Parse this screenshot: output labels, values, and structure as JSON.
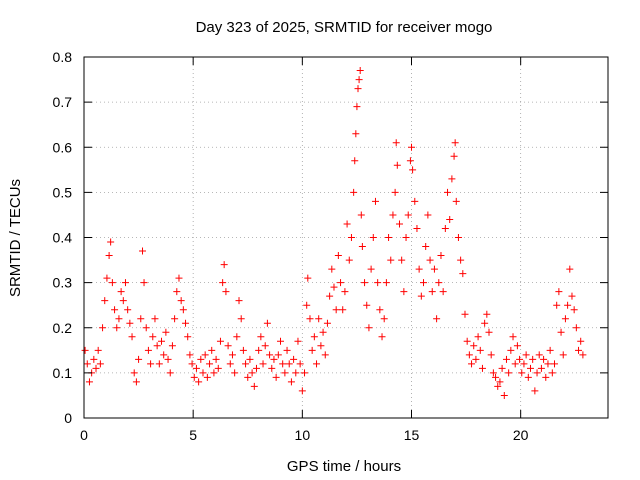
{
  "chart_data": {
    "type": "scatter",
    "title": "Day 323 of 2025, SRMTID for receiver mogo",
    "xlabel": "GPS time / hours",
    "ylabel": "SRMTID / TECUs",
    "xlim": [
      0,
      24
    ],
    "ylim": [
      0,
      0.8
    ],
    "x_ticks": [
      0,
      5,
      10,
      15,
      20
    ],
    "x_tick_labels": [
      "0",
      "5",
      "10",
      "15",
      "20"
    ],
    "y_ticks": [
      0,
      0.1,
      0.2,
      0.3,
      0.4,
      0.5,
      0.6,
      0.7,
      0.8
    ],
    "y_tick_labels": [
      "0",
      "0.1",
      "0.2",
      "0.3",
      "0.4",
      "0.5",
      "0.6",
      "0.7",
      "0.8"
    ],
    "grid": true,
    "marker": "+",
    "color": "#ff0000",
    "series": [
      {
        "name": "SRMTID",
        "points": [
          [
            0.05,
            0.15
          ],
          [
            0.15,
            0.12
          ],
          [
            0.25,
            0.08
          ],
          [
            0.35,
            0.1
          ],
          [
            0.45,
            0.13
          ],
          [
            0.55,
            0.11
          ],
          [
            0.65,
            0.15
          ],
          [
            0.75,
            0.12
          ],
          [
            0.85,
            0.2
          ],
          [
            0.95,
            0.26
          ],
          [
            1.05,
            0.31
          ],
          [
            1.15,
            0.36
          ],
          [
            1.22,
            0.39
          ],
          [
            1.3,
            0.3
          ],
          [
            1.4,
            0.24
          ],
          [
            1.5,
            0.2
          ],
          [
            1.6,
            0.22
          ],
          [
            1.7,
            0.28
          ],
          [
            1.8,
            0.26
          ],
          [
            1.9,
            0.3
          ],
          [
            2.0,
            0.24
          ],
          [
            2.1,
            0.21
          ],
          [
            2.2,
            0.18
          ],
          [
            2.3,
            0.1
          ],
          [
            2.4,
            0.08
          ],
          [
            2.5,
            0.13
          ],
          [
            2.6,
            0.22
          ],
          [
            2.68,
            0.37
          ],
          [
            2.75,
            0.3
          ],
          [
            2.85,
            0.2
          ],
          [
            2.95,
            0.15
          ],
          [
            3.05,
            0.12
          ],
          [
            3.15,
            0.18
          ],
          [
            3.25,
            0.22
          ],
          [
            3.35,
            0.16
          ],
          [
            3.45,
            0.12
          ],
          [
            3.55,
            0.17
          ],
          [
            3.65,
            0.14
          ],
          [
            3.75,
            0.19
          ],
          [
            3.85,
            0.13
          ],
          [
            3.95,
            0.1
          ],
          [
            4.05,
            0.16
          ],
          [
            4.15,
            0.22
          ],
          [
            4.25,
            0.28
          ],
          [
            4.35,
            0.31
          ],
          [
            4.45,
            0.26
          ],
          [
            4.55,
            0.24
          ],
          [
            4.65,
            0.21
          ],
          [
            4.75,
            0.18
          ],
          [
            4.85,
            0.14
          ],
          [
            4.95,
            0.12
          ],
          [
            5.05,
            0.09
          ],
          [
            5.15,
            0.11
          ],
          [
            5.25,
            0.08
          ],
          [
            5.35,
            0.13
          ],
          [
            5.45,
            0.1
          ],
          [
            5.55,
            0.14
          ],
          [
            5.65,
            0.09
          ],
          [
            5.75,
            0.12
          ],
          [
            5.85,
            0.15
          ],
          [
            5.95,
            0.1
          ],
          [
            6.05,
            0.13
          ],
          [
            6.15,
            0.11
          ],
          [
            6.25,
            0.17
          ],
          [
            6.35,
            0.3
          ],
          [
            6.42,
            0.34
          ],
          [
            6.5,
            0.28
          ],
          [
            6.6,
            0.16
          ],
          [
            6.7,
            0.12
          ],
          [
            6.8,
            0.14
          ],
          [
            6.9,
            0.1
          ],
          [
            7.0,
            0.18
          ],
          [
            7.1,
            0.26
          ],
          [
            7.2,
            0.22
          ],
          [
            7.3,
            0.15
          ],
          [
            7.4,
            0.12
          ],
          [
            7.5,
            0.09
          ],
          [
            7.6,
            0.13
          ],
          [
            7.7,
            0.1
          ],
          [
            7.8,
            0.07
          ],
          [
            7.9,
            0.11
          ],
          [
            8.0,
            0.15
          ],
          [
            8.1,
            0.18
          ],
          [
            8.2,
            0.12
          ],
          [
            8.3,
            0.16
          ],
          [
            8.4,
            0.21
          ],
          [
            8.5,
            0.14
          ],
          [
            8.6,
            0.11
          ],
          [
            8.7,
            0.13
          ],
          [
            8.8,
            0.09
          ],
          [
            8.9,
            0.14
          ],
          [
            9.0,
            0.17
          ],
          [
            9.1,
            0.12
          ],
          [
            9.2,
            0.1
          ],
          [
            9.3,
            0.15
          ],
          [
            9.4,
            0.12
          ],
          [
            9.5,
            0.08
          ],
          [
            9.6,
            0.13
          ],
          [
            9.7,
            0.1
          ],
          [
            9.8,
            0.17
          ],
          [
            9.9,
            0.12
          ],
          [
            10.0,
            0.06
          ],
          [
            10.1,
            0.1
          ],
          [
            10.2,
            0.25
          ],
          [
            10.25,
            0.31
          ],
          [
            10.35,
            0.22
          ],
          [
            10.45,
            0.15
          ],
          [
            10.55,
            0.18
          ],
          [
            10.65,
            0.12
          ],
          [
            10.75,
            0.22
          ],
          [
            10.85,
            0.16
          ],
          [
            10.95,
            0.19
          ],
          [
            11.05,
            0.14
          ],
          [
            11.15,
            0.21
          ],
          [
            11.25,
            0.27
          ],
          [
            11.35,
            0.33
          ],
          [
            11.45,
            0.29
          ],
          [
            11.55,
            0.24
          ],
          [
            11.65,
            0.36
          ],
          [
            11.75,
            0.3
          ],
          [
            11.85,
            0.24
          ],
          [
            11.95,
            0.28
          ],
          [
            12.05,
            0.43
          ],
          [
            12.15,
            0.35
          ],
          [
            12.25,
            0.4
          ],
          [
            12.35,
            0.5
          ],
          [
            12.4,
            0.57
          ],
          [
            12.45,
            0.63
          ],
          [
            12.5,
            0.69
          ],
          [
            12.55,
            0.73
          ],
          [
            12.6,
            0.75
          ],
          [
            12.65,
            0.77
          ],
          [
            12.7,
            0.45
          ],
          [
            12.75,
            0.38
          ],
          [
            12.85,
            0.3
          ],
          [
            12.95,
            0.25
          ],
          [
            13.05,
            0.2
          ],
          [
            13.15,
            0.33
          ],
          [
            13.25,
            0.4
          ],
          [
            13.35,
            0.48
          ],
          [
            13.45,
            0.3
          ],
          [
            13.55,
            0.24
          ],
          [
            13.65,
            0.18
          ],
          [
            13.75,
            0.22
          ],
          [
            13.85,
            0.3
          ],
          [
            13.95,
            0.4
          ],
          [
            14.05,
            0.35
          ],
          [
            14.15,
            0.45
          ],
          [
            14.25,
            0.5
          ],
          [
            14.3,
            0.61
          ],
          [
            14.35,
            0.56
          ],
          [
            14.45,
            0.43
          ],
          [
            14.55,
            0.35
          ],
          [
            14.65,
            0.28
          ],
          [
            14.75,
            0.4
          ],
          [
            14.85,
            0.45
          ],
          [
            14.95,
            0.57
          ],
          [
            15.0,
            0.6
          ],
          [
            15.05,
            0.55
          ],
          [
            15.15,
            0.48
          ],
          [
            15.25,
            0.42
          ],
          [
            15.35,
            0.33
          ],
          [
            15.45,
            0.27
          ],
          [
            15.55,
            0.3
          ],
          [
            15.65,
            0.38
          ],
          [
            15.75,
            0.45
          ],
          [
            15.85,
            0.35
          ],
          [
            15.95,
            0.28
          ],
          [
            16.05,
            0.33
          ],
          [
            16.15,
            0.22
          ],
          [
            16.25,
            0.3
          ],
          [
            16.35,
            0.36
          ],
          [
            16.45,
            0.28
          ],
          [
            16.55,
            0.42
          ],
          [
            16.65,
            0.5
          ],
          [
            16.75,
            0.44
          ],
          [
            16.85,
            0.53
          ],
          [
            16.95,
            0.58
          ],
          [
            17.0,
            0.61
          ],
          [
            17.05,
            0.48
          ],
          [
            17.15,
            0.4
          ],
          [
            17.25,
            0.35
          ],
          [
            17.35,
            0.32
          ],
          [
            17.45,
            0.23
          ],
          [
            17.55,
            0.17
          ],
          [
            17.65,
            0.14
          ],
          [
            17.75,
            0.12
          ],
          [
            17.85,
            0.16
          ],
          [
            17.95,
            0.13
          ],
          [
            18.05,
            0.18
          ],
          [
            18.15,
            0.15
          ],
          [
            18.25,
            0.11
          ],
          [
            18.35,
            0.21
          ],
          [
            18.45,
            0.23
          ],
          [
            18.55,
            0.19
          ],
          [
            18.65,
            0.14
          ],
          [
            18.75,
            0.1
          ],
          [
            18.85,
            0.09
          ],
          [
            18.95,
            0.07
          ],
          [
            19.05,
            0.08
          ],
          [
            19.15,
            0.11
          ],
          [
            19.25,
            0.05
          ],
          [
            19.35,
            0.13
          ],
          [
            19.45,
            0.1
          ],
          [
            19.55,
            0.15
          ],
          [
            19.65,
            0.18
          ],
          [
            19.75,
            0.12
          ],
          [
            19.85,
            0.16
          ],
          [
            19.95,
            0.13
          ],
          [
            20.05,
            0.1
          ],
          [
            20.15,
            0.12
          ],
          [
            20.25,
            0.14
          ],
          [
            20.35,
            0.09
          ],
          [
            20.45,
            0.11
          ],
          [
            20.55,
            0.13
          ],
          [
            20.65,
            0.06
          ],
          [
            20.75,
            0.1
          ],
          [
            20.85,
            0.14
          ],
          [
            20.95,
            0.11
          ],
          [
            21.05,
            0.13
          ],
          [
            21.15,
            0.09
          ],
          [
            21.25,
            0.12
          ],
          [
            21.35,
            0.15
          ],
          [
            21.45,
            0.1
          ],
          [
            21.55,
            0.12
          ],
          [
            21.65,
            0.25
          ],
          [
            21.75,
            0.28
          ],
          [
            21.85,
            0.19
          ],
          [
            21.95,
            0.14
          ],
          [
            22.05,
            0.22
          ],
          [
            22.15,
            0.25
          ],
          [
            22.25,
            0.33
          ],
          [
            22.35,
            0.27
          ],
          [
            22.45,
            0.24
          ],
          [
            22.55,
            0.2
          ],
          [
            22.65,
            0.15
          ],
          [
            22.75,
            0.17
          ],
          [
            22.85,
            0.14
          ]
        ]
      }
    ]
  }
}
